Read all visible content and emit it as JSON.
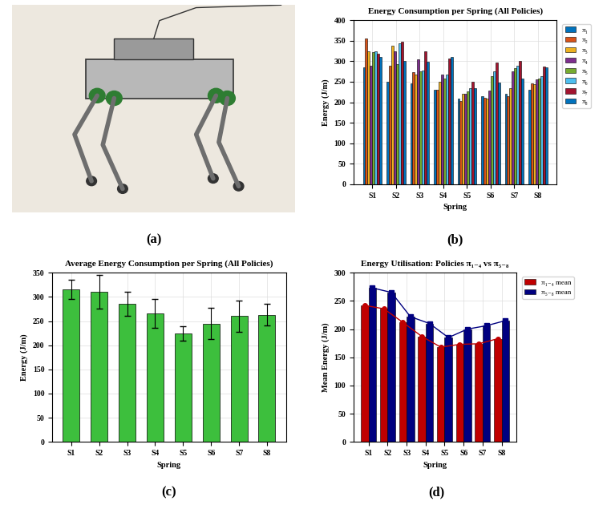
{
  "image": {
    "label": "(a)"
  },
  "chart_data": [
    {
      "type": "bar",
      "title": "Energy Consumption per Spring (All Policies)",
      "annotations": [
        "(b)"
      ],
      "x_label": "Spring",
      "y_label": "Energy (J/m)",
      "categories": [
        "S1",
        "S2",
        "S3",
        "S4",
        "S5",
        "S6",
        "S7",
        "S8"
      ],
      "series": [
        {
          "name": "π₁",
          "color": "#0072BD",
          "values": [
            285,
            250,
            247,
            230,
            208,
            215,
            220,
            230
          ]
        },
        {
          "name": "π₂",
          "color": "#D95319",
          "values": [
            355,
            290,
            273,
            230,
            203,
            210,
            215,
            247
          ]
        },
        {
          "name": "π₃",
          "color": "#EDB120",
          "values": [
            325,
            338,
            268,
            250,
            220,
            208,
            235,
            245
          ]
        },
        {
          "name": "π₄",
          "color": "#7E2F8E",
          "values": [
            290,
            325,
            305,
            268,
            220,
            228,
            275,
            255
          ]
        },
        {
          "name": "π₅",
          "color": "#77AC30",
          "values": [
            322,
            293,
            275,
            257,
            227,
            263,
            283,
            258
          ]
        },
        {
          "name": "π₆",
          "color": "#4DBEEE",
          "values": [
            325,
            343,
            278,
            268,
            235,
            275,
            290,
            263
          ]
        },
        {
          "name": "π₇",
          "color": "#A2142F",
          "values": [
            318,
            348,
            325,
            307,
            250,
            297,
            300,
            288
          ]
        },
        {
          "name": "π₈",
          "color": "#0072BD",
          "values": [
            310,
            300,
            298,
            310,
            235,
            248,
            258,
            285
          ]
        }
      ],
      "ylim": [
        0,
        400
      ],
      "yticks": [
        0,
        50,
        100,
        150,
        200,
        250,
        300,
        350,
        400
      ],
      "grid": true,
      "legend": "upper left"
    },
    {
      "type": "bar",
      "title": "Average Energy Consumption per Spring (All Policies)",
      "annotations": [
        "(c)"
      ],
      "x_label": "Spring",
      "y_label": "Energy (J/m)",
      "categories": [
        "S1",
        "S2",
        "S3",
        "S4",
        "S5",
        "S6",
        "S7",
        "S8"
      ],
      "values": [
        316,
        311,
        285,
        266,
        225,
        245,
        260,
        263
      ],
      "errors": [
        20,
        35,
        25,
        30,
        15,
        32,
        32,
        22
      ],
      "color": "#3DBF3D",
      "ylim": [
        0,
        350
      ],
      "yticks": [
        0,
        50,
        100,
        150,
        200,
        250,
        300,
        350
      ],
      "grid": true
    },
    {
      "type": "bar",
      "title": "Energy Utilisation: Policies π₁₋₄ vs π₅₋₈",
      "annotations": [
        "(d)"
      ],
      "x_label": "Spring",
      "y_label": "Mean Energy (J/m)",
      "categories": [
        "S1",
        "S2",
        "S3",
        "S4",
        "S5",
        "S6",
        "S7",
        "S8"
      ],
      "series": [
        {
          "name": "π₁₋₄ mean",
          "color": "#C00000",
          "marker": "o",
          "values": [
            242,
            236,
            212,
            187,
            168,
            173,
            174,
            183
          ]
        },
        {
          "name": "π₅₋₈ mean",
          "color": "#000080",
          "marker": "s",
          "values": [
            273,
            265,
            222,
            210,
            185,
            200,
            206,
            215
          ]
        }
      ],
      "ylim": [
        0,
        300
      ],
      "yticks": [
        0,
        50,
        100,
        150,
        200,
        250,
        300
      ],
      "grid": true,
      "legend": "upper left"
    }
  ]
}
